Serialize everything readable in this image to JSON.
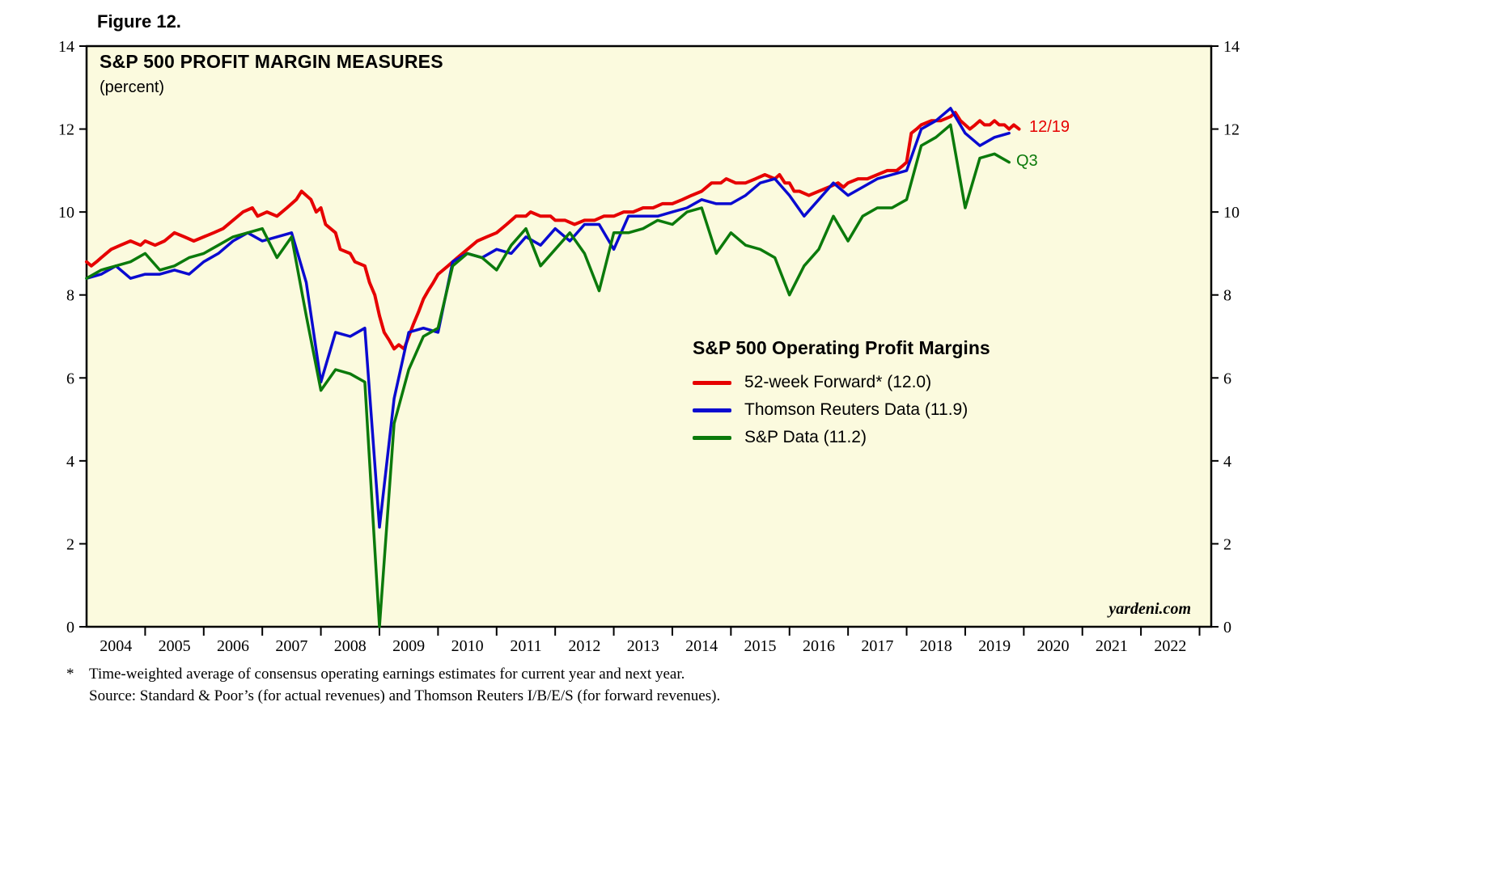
{
  "figure_label": "Figure 12.",
  "title": "S&P 500 PROFIT MARGIN MEASURES",
  "subtitle": "(percent)",
  "legend": {
    "title": "S&P 500 Operating Profit Margins",
    "items": [
      {
        "label": "52-week Forward* (12.0)"
      },
      {
        "label": "Thomson Reuters Data (11.9)"
      },
      {
        "label": "S&P Data (11.2)"
      }
    ]
  },
  "annotations": [
    {
      "text": "12/19",
      "color": "#e60000"
    },
    {
      "text": "Q3",
      "color": "#0b7a0b"
    }
  ],
  "watermark": "yardeni.com",
  "footnote": {
    "marker": "*",
    "line1": "Time-weighted average of consensus operating earnings estimates for current year and next year.",
    "line2": "Source: Standard & Poor’s (for actual revenues) and Thomson Reuters I/B/E/S (for forward revenues)."
  },
  "chart_data": {
    "type": "line",
    "title": "S&P 500 PROFIT MARGIN MEASURES",
    "ylabel": "percent",
    "ylim": [
      0,
      14
    ],
    "yticks": [
      0,
      2,
      4,
      6,
      8,
      10,
      12,
      14
    ],
    "xlim": [
      2004.0,
      2023.2
    ],
    "xtick_years": [
      2004,
      2005,
      2006,
      2007,
      2008,
      2009,
      2010,
      2011,
      2012,
      2013,
      2014,
      2015,
      2016,
      2017,
      2018,
      2019,
      2020,
      2021,
      2022
    ],
    "grid": false,
    "legend_position": "inside-right",
    "plot_bg": "#fbfade",
    "series": [
      {
        "name": "52-week Forward",
        "last_value": 12.0,
        "color": "#e60000",
        "width": 4,
        "points": [
          [
            2004.0,
            8.8
          ],
          [
            2004.08,
            8.7
          ],
          [
            2004.17,
            8.8
          ],
          [
            2004.25,
            8.9
          ],
          [
            2004.42,
            9.1
          ],
          [
            2004.58,
            9.2
          ],
          [
            2004.75,
            9.3
          ],
          [
            2004.92,
            9.2
          ],
          [
            2005.0,
            9.3
          ],
          [
            2005.17,
            9.2
          ],
          [
            2005.33,
            9.3
          ],
          [
            2005.5,
            9.5
          ],
          [
            2005.67,
            9.4
          ],
          [
            2005.83,
            9.3
          ],
          [
            2006.0,
            9.4
          ],
          [
            2006.17,
            9.5
          ],
          [
            2006.33,
            9.6
          ],
          [
            2006.5,
            9.8
          ],
          [
            2006.67,
            10.0
          ],
          [
            2006.83,
            10.1
          ],
          [
            2006.92,
            9.9
          ],
          [
            2007.08,
            10.0
          ],
          [
            2007.25,
            9.9
          ],
          [
            2007.42,
            10.1
          ],
          [
            2007.58,
            10.3
          ],
          [
            2007.67,
            10.5
          ],
          [
            2007.83,
            10.3
          ],
          [
            2007.92,
            10.0
          ],
          [
            2008.0,
            10.1
          ],
          [
            2008.08,
            9.7
          ],
          [
            2008.25,
            9.5
          ],
          [
            2008.33,
            9.1
          ],
          [
            2008.5,
            9.0
          ],
          [
            2008.58,
            8.8
          ],
          [
            2008.75,
            8.7
          ],
          [
            2008.83,
            8.3
          ],
          [
            2008.92,
            8.0
          ],
          [
            2009.0,
            7.5
          ],
          [
            2009.08,
            7.1
          ],
          [
            2009.17,
            6.9
          ],
          [
            2009.25,
            6.7
          ],
          [
            2009.33,
            6.8
          ],
          [
            2009.42,
            6.7
          ],
          [
            2009.5,
            7.0
          ],
          [
            2009.58,
            7.3
          ],
          [
            2009.67,
            7.6
          ],
          [
            2009.75,
            7.9
          ],
          [
            2009.83,
            8.1
          ],
          [
            2009.92,
            8.3
          ],
          [
            2010.0,
            8.5
          ],
          [
            2010.17,
            8.7
          ],
          [
            2010.33,
            8.9
          ],
          [
            2010.5,
            9.1
          ],
          [
            2010.67,
            9.3
          ],
          [
            2010.83,
            9.4
          ],
          [
            2011.0,
            9.5
          ],
          [
            2011.17,
            9.7
          ],
          [
            2011.33,
            9.9
          ],
          [
            2011.5,
            9.9
          ],
          [
            2011.58,
            10.0
          ],
          [
            2011.75,
            9.9
          ],
          [
            2011.92,
            9.9
          ],
          [
            2012.0,
            9.8
          ],
          [
            2012.17,
            9.8
          ],
          [
            2012.33,
            9.7
          ],
          [
            2012.5,
            9.8
          ],
          [
            2012.67,
            9.8
          ],
          [
            2012.83,
            9.9
          ],
          [
            2013.0,
            9.9
          ],
          [
            2013.17,
            10.0
          ],
          [
            2013.33,
            10.0
          ],
          [
            2013.5,
            10.1
          ],
          [
            2013.67,
            10.1
          ],
          [
            2013.83,
            10.2
          ],
          [
            2014.0,
            10.2
          ],
          [
            2014.17,
            10.3
          ],
          [
            2014.33,
            10.4
          ],
          [
            2014.5,
            10.5
          ],
          [
            2014.67,
            10.7
          ],
          [
            2014.83,
            10.7
          ],
          [
            2014.92,
            10.8
          ],
          [
            2015.08,
            10.7
          ],
          [
            2015.25,
            10.7
          ],
          [
            2015.42,
            10.8
          ],
          [
            2015.58,
            10.9
          ],
          [
            2015.75,
            10.8
          ],
          [
            2015.83,
            10.9
          ],
          [
            2015.92,
            10.7
          ],
          [
            2016.0,
            10.7
          ],
          [
            2016.08,
            10.5
          ],
          [
            2016.17,
            10.5
          ],
          [
            2016.33,
            10.4
          ],
          [
            2016.5,
            10.5
          ],
          [
            2016.67,
            10.6
          ],
          [
            2016.83,
            10.7
          ],
          [
            2016.92,
            10.6
          ],
          [
            2017.0,
            10.7
          ],
          [
            2017.17,
            10.8
          ],
          [
            2017.33,
            10.8
          ],
          [
            2017.5,
            10.9
          ],
          [
            2017.67,
            11.0
          ],
          [
            2017.83,
            11.0
          ],
          [
            2017.92,
            11.1
          ],
          [
            2018.0,
            11.2
          ],
          [
            2018.08,
            11.9
          ],
          [
            2018.17,
            12.0
          ],
          [
            2018.25,
            12.1
          ],
          [
            2018.42,
            12.2
          ],
          [
            2018.58,
            12.2
          ],
          [
            2018.75,
            12.3
          ],
          [
            2018.83,
            12.4
          ],
          [
            2018.92,
            12.2
          ],
          [
            2019.0,
            12.1
          ],
          [
            2019.08,
            12.0
          ],
          [
            2019.17,
            12.1
          ],
          [
            2019.25,
            12.2
          ],
          [
            2019.33,
            12.1
          ],
          [
            2019.42,
            12.1
          ],
          [
            2019.5,
            12.2
          ],
          [
            2019.58,
            12.1
          ],
          [
            2019.67,
            12.1
          ],
          [
            2019.75,
            12.0
          ],
          [
            2019.83,
            12.1
          ],
          [
            2019.92,
            12.0
          ]
        ]
      },
      {
        "name": "Thomson Reuters Data",
        "last_value": 11.9,
        "color": "#0a0ad0",
        "width": 3.5,
        "points": [
          [
            2004.0,
            8.4
          ],
          [
            2004.25,
            8.5
          ],
          [
            2004.5,
            8.7
          ],
          [
            2004.75,
            8.4
          ],
          [
            2005.0,
            8.5
          ],
          [
            2005.25,
            8.5
          ],
          [
            2005.5,
            8.6
          ],
          [
            2005.75,
            8.5
          ],
          [
            2006.0,
            8.8
          ],
          [
            2006.25,
            9.0
          ],
          [
            2006.5,
            9.3
          ],
          [
            2006.75,
            9.5
          ],
          [
            2007.0,
            9.3
          ],
          [
            2007.25,
            9.4
          ],
          [
            2007.5,
            9.5
          ],
          [
            2007.75,
            8.3
          ],
          [
            2008.0,
            5.9
          ],
          [
            2008.25,
            7.1
          ],
          [
            2008.5,
            7.0
          ],
          [
            2008.75,
            7.2
          ],
          [
            2009.0,
            2.4
          ],
          [
            2009.25,
            5.5
          ],
          [
            2009.5,
            7.1
          ],
          [
            2009.75,
            7.2
          ],
          [
            2010.0,
            7.1
          ],
          [
            2010.25,
            8.8
          ],
          [
            2010.5,
            9.0
          ],
          [
            2010.75,
            8.9
          ],
          [
            2011.0,
            9.1
          ],
          [
            2011.25,
            9.0
          ],
          [
            2011.5,
            9.4
          ],
          [
            2011.75,
            9.2
          ],
          [
            2012.0,
            9.6
          ],
          [
            2012.25,
            9.3
          ],
          [
            2012.5,
            9.7
          ],
          [
            2012.75,
            9.7
          ],
          [
            2013.0,
            9.1
          ],
          [
            2013.25,
            9.9
          ],
          [
            2013.5,
            9.9
          ],
          [
            2013.75,
            9.9
          ],
          [
            2014.0,
            10.0
          ],
          [
            2014.25,
            10.1
          ],
          [
            2014.5,
            10.3
          ],
          [
            2014.75,
            10.2
          ],
          [
            2015.0,
            10.2
          ],
          [
            2015.25,
            10.4
          ],
          [
            2015.5,
            10.7
          ],
          [
            2015.75,
            10.8
          ],
          [
            2016.0,
            10.4
          ],
          [
            2016.25,
            9.9
          ],
          [
            2016.5,
            10.3
          ],
          [
            2016.75,
            10.7
          ],
          [
            2017.0,
            10.4
          ],
          [
            2017.25,
            10.6
          ],
          [
            2017.5,
            10.8
          ],
          [
            2017.75,
            10.9
          ],
          [
            2018.0,
            11.0
          ],
          [
            2018.25,
            12.0
          ],
          [
            2018.5,
            12.2
          ],
          [
            2018.75,
            12.5
          ],
          [
            2019.0,
            11.9
          ],
          [
            2019.25,
            11.6
          ],
          [
            2019.5,
            11.8
          ],
          [
            2019.75,
            11.9
          ]
        ]
      },
      {
        "name": "S&P Data",
        "last_value": 11.2,
        "color": "#0b7a0b",
        "width": 3.5,
        "points": [
          [
            2004.0,
            8.4
          ],
          [
            2004.25,
            8.6
          ],
          [
            2004.5,
            8.7
          ],
          [
            2004.75,
            8.8
          ],
          [
            2005.0,
            9.0
          ],
          [
            2005.25,
            8.6
          ],
          [
            2005.5,
            8.7
          ],
          [
            2005.75,
            8.9
          ],
          [
            2006.0,
            9.0
          ],
          [
            2006.25,
            9.2
          ],
          [
            2006.5,
            9.4
          ],
          [
            2006.75,
            9.5
          ],
          [
            2007.0,
            9.6
          ],
          [
            2007.25,
            8.9
          ],
          [
            2007.5,
            9.4
          ],
          [
            2007.75,
            7.5
          ],
          [
            2008.0,
            5.7
          ],
          [
            2008.25,
            6.2
          ],
          [
            2008.5,
            6.1
          ],
          [
            2008.75,
            5.9
          ],
          [
            2009.0,
            0.0
          ],
          [
            2009.25,
            4.9
          ],
          [
            2009.5,
            6.2
          ],
          [
            2009.75,
            7.0
          ],
          [
            2010.0,
            7.2
          ],
          [
            2010.25,
            8.7
          ],
          [
            2010.5,
            9.0
          ],
          [
            2010.75,
            8.9
          ],
          [
            2011.0,
            8.6
          ],
          [
            2011.25,
            9.2
          ],
          [
            2011.5,
            9.6
          ],
          [
            2011.75,
            8.7
          ],
          [
            2012.0,
            9.1
          ],
          [
            2012.25,
            9.5
          ],
          [
            2012.5,
            9.0
          ],
          [
            2012.75,
            8.1
          ],
          [
            2013.0,
            9.5
          ],
          [
            2013.25,
            9.5
          ],
          [
            2013.5,
            9.6
          ],
          [
            2013.75,
            9.8
          ],
          [
            2014.0,
            9.7
          ],
          [
            2014.25,
            10.0
          ],
          [
            2014.5,
            10.1
          ],
          [
            2014.75,
            9.0
          ],
          [
            2015.0,
            9.5
          ],
          [
            2015.25,
            9.2
          ],
          [
            2015.5,
            9.1
          ],
          [
            2015.75,
            8.9
          ],
          [
            2016.0,
            8.0
          ],
          [
            2016.25,
            8.7
          ],
          [
            2016.5,
            9.1
          ],
          [
            2016.75,
            9.9
          ],
          [
            2017.0,
            9.3
          ],
          [
            2017.25,
            9.9
          ],
          [
            2017.5,
            10.1
          ],
          [
            2017.75,
            10.1
          ],
          [
            2018.0,
            10.3
          ],
          [
            2018.25,
            11.6
          ],
          [
            2018.5,
            11.8
          ],
          [
            2018.75,
            12.1
          ],
          [
            2019.0,
            10.1
          ],
          [
            2019.25,
            11.3
          ],
          [
            2019.5,
            11.4
          ],
          [
            2019.75,
            11.2
          ]
        ]
      }
    ]
  }
}
